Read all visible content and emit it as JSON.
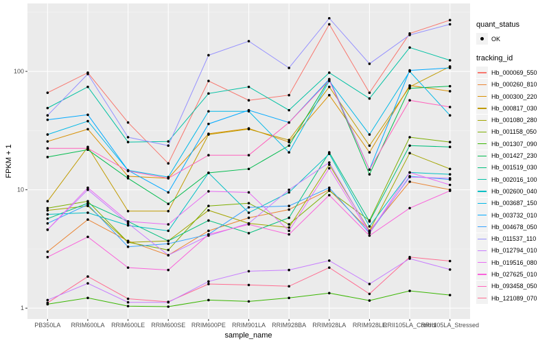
{
  "chart_data": {
    "type": "line",
    "title": "",
    "xlabel": "sample_name",
    "ylabel": "FPKM + 1",
    "yscale": "log10",
    "ylim": [
      0.81,
      375
    ],
    "yticks": [
      1,
      10,
      100
    ],
    "ytick_labels": [
      "1",
      "10",
      "100"
    ],
    "grid": true,
    "legend_position": "right",
    "categories": [
      "PB350LA",
      "RRIM600LA",
      "RRIM600LE",
      "RRIM600SE",
      "RRIM600PE",
      "RRIM901LA",
      "RRIM928BA",
      "RRIM928LA",
      "RRIM928LE",
      "RRII105LA_Control",
      "RRII105LA_Stressed"
    ],
    "shape_legend": {
      "title": "quant_status",
      "entries": [
        "OK"
      ]
    },
    "color_legend_title": "tracking_id",
    "series": [
      {
        "name": "Hb_000069_550",
        "color": "#F8766D",
        "values": [
          66,
          97.5,
          37,
          16.7,
          83,
          57,
          63,
          250,
          66,
          209,
          271
        ]
      },
      {
        "name": "Hb_000260_810",
        "color": "#EA8331",
        "values": [
          3.0,
          5.6,
          3.7,
          2.8,
          4.5,
          5.8,
          6.8,
          10,
          4.5,
          11.7,
          10.0
        ]
      },
      {
        "name": "Hb_000300_220",
        "color": "#D89000",
        "values": [
          25.6,
          32.5,
          13.0,
          12.5,
          29.7,
          33,
          25.3,
          63,
          20.7,
          76,
          68
        ]
      },
      {
        "name": "Hb_000817_030",
        "color": "#C09B00",
        "values": [
          8.0,
          23,
          6.6,
          6.6,
          29.3,
          32.5,
          26.3,
          74,
          23.6,
          74,
          110
        ]
      },
      {
        "name": "Hb_001080_280",
        "color": "#A3A500",
        "values": [
          6.7,
          7.3,
          3.6,
          3.7,
          6.7,
          5.2,
          4.8,
          16.3,
          4.5,
          20.4,
          15.0
        ]
      },
      {
        "name": "Hb_001158_050",
        "color": "#7CAE00",
        "values": [
          7.0,
          8.0,
          3.6,
          3.1,
          7.3,
          7.7,
          5.1,
          9.8,
          5.5,
          27.8,
          25.3
        ]
      },
      {
        "name": "Hb_001307_090",
        "color": "#39B600",
        "values": [
          1.08,
          1.22,
          1.04,
          1.03,
          1.17,
          1.14,
          1.22,
          1.34,
          1.16,
          1.4,
          1.29
        ]
      },
      {
        "name": "Hb_001427_230",
        "color": "#00BB4E",
        "values": [
          18.9,
          21.8,
          12.5,
          7.6,
          13.9,
          15.0,
          23.6,
          86,
          13.5,
          72,
          75
        ]
      },
      {
        "name": "Hb_001519_030",
        "color": "#00BF7D",
        "values": [
          5.7,
          7.7,
          5.4,
          3.7,
          5.5,
          4.3,
          5.8,
          20.7,
          5.4,
          23.6,
          23.0
        ]
      },
      {
        "name": "Hb_002016_100",
        "color": "#00C1A3",
        "values": [
          49,
          74,
          25.3,
          25.6,
          65,
          74,
          47,
          97.5,
          59,
          159,
          124
        ]
      },
      {
        "name": "Hb_002600_040",
        "color": "#00BFC4",
        "values": [
          6.2,
          6.4,
          5.0,
          4.5,
          13.9,
          6.4,
          9.5,
          20.1,
          4.9,
          14.0,
          13.5
        ]
      },
      {
        "name": "Hb_003687_150",
        "color": "#00B8E7",
        "values": [
          29.3,
          38,
          14.6,
          12.8,
          46,
          46,
          20.7,
          83,
          29.3,
          100,
          42.5
        ]
      },
      {
        "name": "Hb_003732_010",
        "color": "#00A9FF",
        "values": [
          39,
          43,
          14.6,
          9.5,
          36,
          47,
          37,
          86,
          14.8,
          102,
          107
        ]
      },
      {
        "name": "Hb_004678_050",
        "color": "#35A2FF",
        "values": [
          5.2,
          7.5,
          3.3,
          3.5,
          4.2,
          7.1,
          7.3,
          10.4,
          4.3,
          13.0,
          12.2
        ]
      },
      {
        "name": "Hb_011537_110",
        "color": "#9590FF",
        "values": [
          42.5,
          95,
          27.8,
          23.6,
          137,
          180,
          107,
          281,
          116,
          203,
          250
        ]
      },
      {
        "name": "Hb_012794_010",
        "color": "#C77CFF",
        "values": [
          4.6,
          10.0,
          5.2,
          2.8,
          4.1,
          5.2,
          10.0,
          17.0,
          4.4,
          12.8,
          12.5
        ]
      },
      {
        "name": "Hb_019516_080",
        "color": "#E76BF3",
        "values": [
          4.6,
          10.4,
          5.4,
          5.1,
          9.7,
          9.5,
          4.5,
          15.2,
          4.3,
          14.0,
          11.0
        ]
      },
      {
        "name": "Hb_027625_010",
        "color": "#FA62DB",
        "values": [
          2.7,
          4.0,
          2.2,
          2.1,
          4.2,
          5.1,
          4.2,
          9.0,
          4.1,
          7.0,
          9.8
        ]
      },
      {
        "name": "Hb_093458_050",
        "color": "#FF62BC",
        "values": [
          22.4,
          22.4,
          14.4,
          12.5,
          19.6,
          19.6,
          37,
          84,
          14.8,
          57,
          50
        ]
      },
      {
        "name": "Hb_121089_070",
        "color": "#FF6C91",
        "values": [
          1.11,
          1.85,
          1.2,
          1.13,
          1.6,
          1.57,
          1.53,
          2.2,
          1.32,
          2.7,
          2.5
        ]
      }
    ],
    "extra_series": [
      {
        "name": "Hb_027625_010 (lower)",
        "values": [
          1.17,
          1.62,
          1.12,
          1.12,
          1.68,
          2.05,
          2.1,
          2.52,
          1.6,
          2.62,
          2.12
        ]
      }
    ]
  }
}
